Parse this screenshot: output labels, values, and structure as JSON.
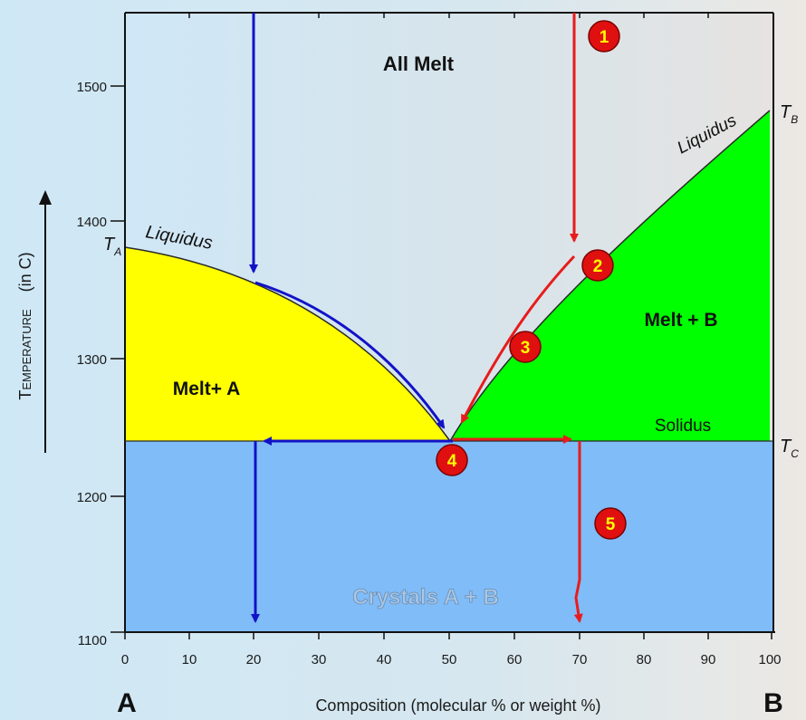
{
  "diagram": {
    "y_axis_title_main": "Temperature",
    "y_axis_title_unit": "(in C)",
    "x_axis_title": "Composition  (molecular % or weight %)",
    "end_member_left": "A",
    "end_member_right": "B",
    "x_ticks": [
      "0",
      "10",
      "20",
      "30",
      "40",
      "50",
      "60",
      "70",
      "80",
      "90",
      "100"
    ],
    "y_ticks": [
      "1100",
      "1200",
      "1300",
      "1400",
      "1500"
    ],
    "regions": {
      "all_melt": "All Melt",
      "melt_a": "Melt+ A",
      "melt_b": "Melt + B",
      "crystals": "Crystals A + B"
    },
    "curve_labels": {
      "liquidus_left": "Liquidus",
      "liquidus_right": "Liquidus",
      "solidus": "Solidus"
    },
    "temp_labels": {
      "ta": "T",
      "ta_sub": "A",
      "tb": "T",
      "tb_sub": "B",
      "tc": "T",
      "tc_sub": "C"
    },
    "steps": [
      "1",
      "2",
      "3",
      "4",
      "5"
    ],
    "colors": {
      "melt_a": "#ffff00",
      "melt_b": "#00ff00",
      "crystals": "#7fbcf8",
      "path_blue": "#1212c8",
      "path_red": "#e81c1c",
      "step_badge": "#e01010",
      "step_text": "#ffff00"
    }
  }
}
